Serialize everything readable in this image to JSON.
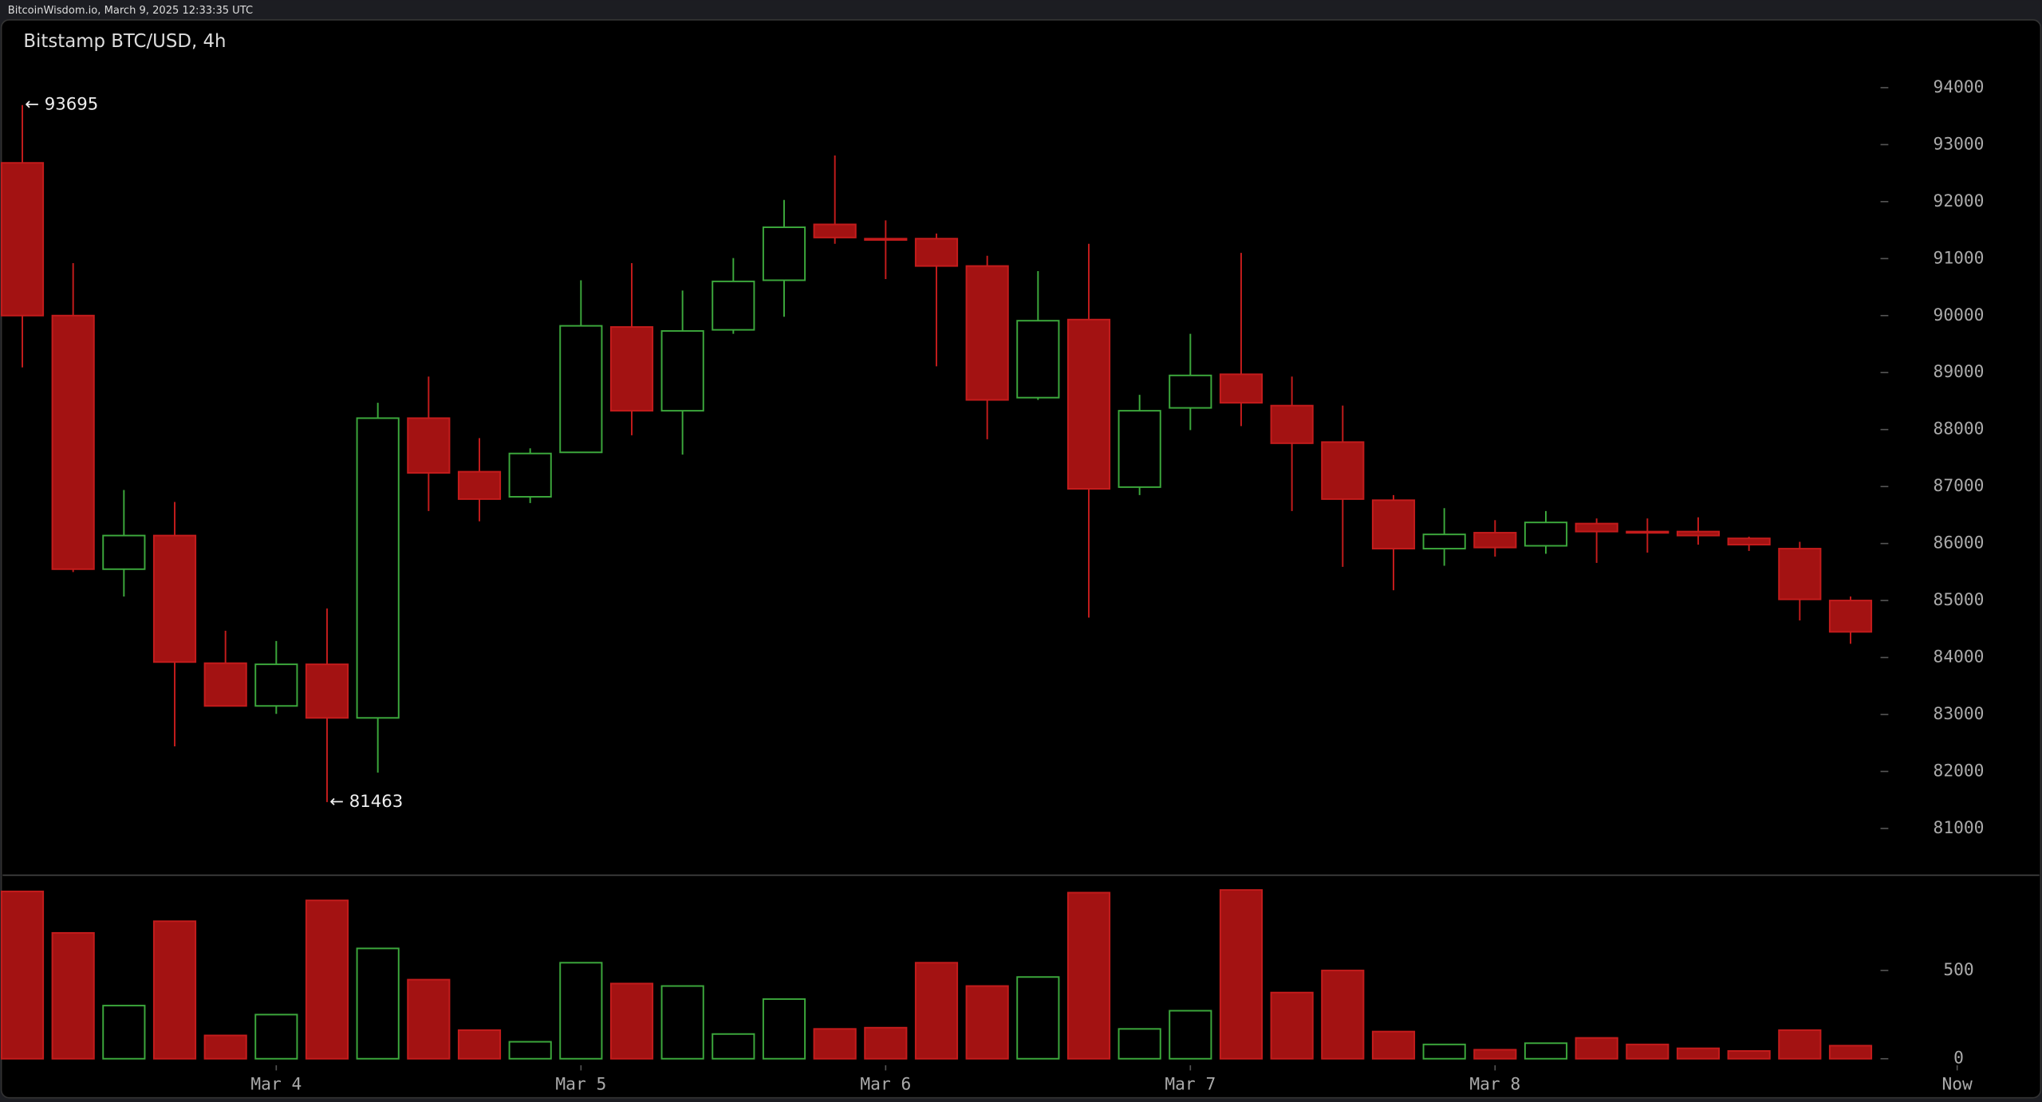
{
  "header": {
    "source": "BitcoinWisdom.io, March 9, 2025 12:33:35 UTC"
  },
  "chart_data": {
    "type": "candlestick",
    "title": "Bitstamp BTC/USD, 4h",
    "up_color": "#3ca83c",
    "down_color": "#a31212",
    "open": [
      92680,
      90000,
      85550,
      86140,
      83900,
      83150,
      83880,
      82940,
      88200,
      87260,
      86820,
      87600,
      89800,
      88330,
      89750,
      90620,
      91600,
      91350,
      91350,
      90870,
      88560,
      89930,
      86990,
      88380,
      88970,
      88420,
      87780,
      86760,
      85910,
      86190,
      85960,
      86350,
      86210,
      86210,
      86090,
      85910,
      85000
    ],
    "high": [
      93695,
      90920,
      86940,
      86730,
      84470,
      84290,
      84860,
      88470,
      88930,
      87850,
      87670,
      90620,
      90920,
      90440,
      91010,
      92030,
      92810,
      91670,
      91440,
      91050,
      90780,
      91260,
      88610,
      89680,
      91100,
      88930,
      88420,
      86850,
      86620,
      86410,
      86570,
      86440,
      86440,
      86460,
      86120,
      86030,
      85070
    ],
    "low": [
      89090,
      85500,
      85070,
      82440,
      83150,
      83010,
      81463,
      81980,
      86570,
      86390,
      86710,
      87600,
      87900,
      87560,
      89680,
      89980,
      91260,
      90640,
      89110,
      87830,
      88520,
      84700,
      86850,
      87990,
      88060,
      86570,
      85590,
      85180,
      85610,
      85770,
      85820,
      85660,
      85840,
      85980,
      85870,
      84650,
      84240
    ],
    "close": [
      90000,
      85550,
      86140,
      83920,
      83150,
      83880,
      82940,
      88200,
      87240,
      86780,
      87580,
      89820,
      88330,
      89730,
      90600,
      91550,
      91370,
      91330,
      90870,
      88520,
      89910,
      86960,
      88330,
      88950,
      88470,
      87760,
      86780,
      85910,
      86160,
      85930,
      86370,
      86210,
      86190,
      86140,
      85980,
      85020,
      84450
    ],
    "volume": [
      948,
      713,
      301,
      779,
      132,
      250,
      897,
      625,
      448,
      162,
      96,
      544,
      426,
      412,
      140,
      338,
      169,
      176,
      544,
      412,
      463,
      941,
      169,
      272,
      956,
      375,
      500,
      154,
      81,
      51,
      88,
      118,
      81,
      59,
      44,
      162,
      74
    ],
    "xlim": [
      -0.44,
      39.77
    ],
    "xticks": [
      {
        "value": 5,
        "label": "Mar 4"
      },
      {
        "value": 11,
        "label": "Mar 5"
      },
      {
        "value": 17,
        "label": "Mar 6"
      },
      {
        "value": 23,
        "label": "Mar 7"
      },
      {
        "value": 29,
        "label": "Mar 8"
      },
      {
        "value": 38.1,
        "label": "Now"
      }
    ],
    "ylim": [
      80180,
      95190
    ],
    "yticks": [
      81000,
      82000,
      83000,
      84000,
      85000,
      86000,
      87000,
      88000,
      89000,
      90000,
      91000,
      92000,
      93000,
      94000
    ],
    "y2lim": [
      0,
      1040
    ],
    "y2ticks": [
      0,
      500
    ],
    "annotations": [
      {
        "label": "← 93695",
        "value": 93695,
        "x": 0
      },
      {
        "label": "← 81463",
        "value": 81463,
        "x": 6
      }
    ]
  }
}
